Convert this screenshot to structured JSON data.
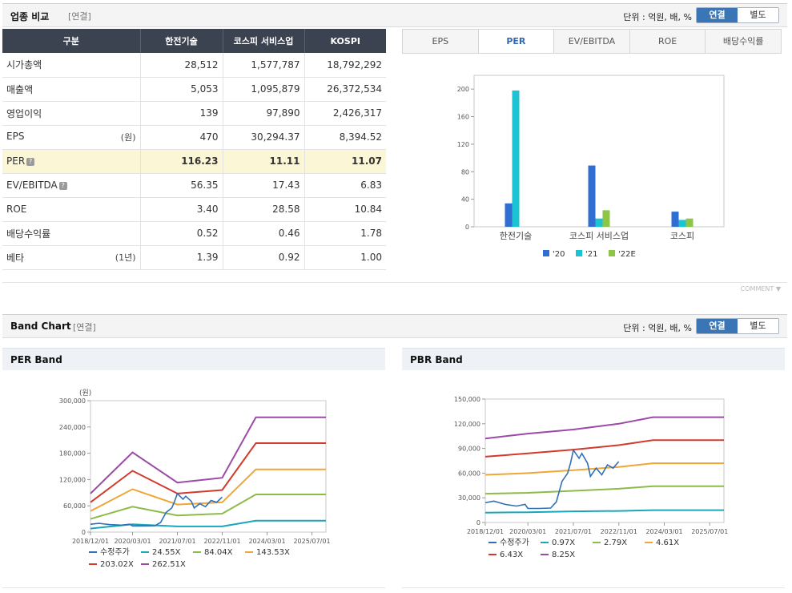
{
  "comparison": {
    "title": "업종 비교",
    "sub": "[연결]",
    "unit": "단위 : 억원, 배, %",
    "toggle": [
      "연결",
      "별도"
    ],
    "headers": [
      "구분",
      "한전기술",
      "코스피 서비스업",
      "KOSPI"
    ],
    "rows": [
      {
        "label": "시가총액",
        "unit": "",
        "q": false,
        "values": [
          "28,512",
          "1,577,787",
          "18,792,292"
        ],
        "highlight": false
      },
      {
        "label": "매출액",
        "unit": "",
        "q": false,
        "values": [
          "5,053",
          "1,095,879",
          "26,372,534"
        ],
        "highlight": false
      },
      {
        "label": "영업이익",
        "unit": "",
        "q": false,
        "values": [
          "139",
          "97,890",
          "2,426,317"
        ],
        "highlight": false
      },
      {
        "label": "EPS",
        "unit": "(원)",
        "q": false,
        "values": [
          "470",
          "30,294.37",
          "8,394.52"
        ],
        "highlight": false
      },
      {
        "label": "PER",
        "unit": "",
        "q": true,
        "values": [
          "116.23",
          "11.11",
          "11.07"
        ],
        "highlight": true
      },
      {
        "label": "EV/EBITDA",
        "unit": "",
        "q": true,
        "values": [
          "56.35",
          "17.43",
          "6.83"
        ],
        "highlight": false
      },
      {
        "label": "ROE",
        "unit": "",
        "q": false,
        "values": [
          "3.40",
          "28.58",
          "10.84"
        ],
        "highlight": false
      },
      {
        "label": "배당수익률",
        "unit": "",
        "q": false,
        "values": [
          "0.52",
          "0.46",
          "1.78"
        ],
        "highlight": false
      },
      {
        "label": "베타",
        "unit": "(1년)",
        "q": false,
        "values": [
          "1.39",
          "0.92",
          "1.00"
        ],
        "highlight": false
      }
    ],
    "tabs": [
      "EPS",
      "PER",
      "EV/EBITDA",
      "ROE",
      "배당수익률"
    ],
    "active_tab": "PER",
    "comment": "COMMENT"
  },
  "band": {
    "title": "Band Chart",
    "sub": "[연결]",
    "unit": "단위 : 억원, 배, %",
    "toggle": [
      "연결",
      "별도"
    ]
  },
  "chart_data": [
    {
      "type": "bar",
      "title": "",
      "categories": [
        "한전기술",
        "코스피 서비스업",
        "코스피"
      ],
      "series": [
        {
          "name": "'20",
          "values": [
            34,
            89,
            22
          ]
        },
        {
          "name": "'21",
          "values": [
            198,
            12,
            10
          ]
        },
        {
          "name": "'22E",
          "values": [
            0,
            24,
            12
          ]
        }
      ],
      "colors": [
        "#2f6fd1",
        "#1cc3d3",
        "#8dc547"
      ],
      "ylim": [
        0,
        220
      ],
      "yticks": [
        0,
        40,
        80,
        120,
        160,
        200
      ],
      "legend": "bottom"
    },
    {
      "type": "line",
      "title": "PER Band",
      "ylabel": "(원)",
      "ylim": [
        0,
        300000
      ],
      "yticks": [
        "0",
        "60,000",
        "120,000",
        "180,000",
        "240,000",
        "300,000"
      ],
      "xticks": [
        "2018/12/01",
        "2020/03/01",
        "2021/07/01",
        "2022/11/01",
        "2024/03/01",
        "2025/07/01"
      ],
      "x_range": [
        "2018/12/01",
        "2025/12/01"
      ],
      "series": [
        {
          "name": "수정주가",
          "color": "#2f6fb8",
          "points": [
            [
              "2018/12/01",
              18000
            ],
            [
              "2019/03/01",
              20000
            ],
            [
              "2019/07/01",
              17000
            ],
            [
              "2019/11/01",
              16000
            ],
            [
              "2020/02/01",
              18000
            ],
            [
              "2020/03/01",
              14000
            ],
            [
              "2020/07/01",
              14000
            ],
            [
              "2020/11/01",
              14500
            ],
            [
              "2021/01/01",
              22000
            ],
            [
              "2021/03/01",
              45000
            ],
            [
              "2021/05/01",
              55000
            ],
            [
              "2021/06/01",
              70000
            ],
            [
              "2021/07/01",
              88000
            ],
            [
              "2021/09/01",
              75000
            ],
            [
              "2021/10/01",
              82000
            ],
            [
              "2021/12/01",
              70000
            ],
            [
              "2022/01/01",
              55000
            ],
            [
              "2022/03/01",
              65000
            ],
            [
              "2022/05/01",
              58000
            ],
            [
              "2022/07/01",
              72000
            ],
            [
              "2022/09/01",
              68000
            ],
            [
              "2022/11/01",
              80000
            ]
          ]
        },
        {
          "name": "24.55X",
          "color": "#1aa7b8",
          "points": [
            [
              "2018/12/01",
              8000
            ],
            [
              "2020/03/01",
              18000
            ],
            [
              "2021/07/01",
              13000
            ],
            [
              "2022/11/01",
              13000
            ],
            [
              "2023/11/01",
              26000
            ],
            [
              "2025/12/01",
              26000
            ]
          ]
        },
        {
          "name": "84.04X",
          "color": "#8dbb4a",
          "points": [
            [
              "2018/12/01",
              30000
            ],
            [
              "2020/03/01",
              58000
            ],
            [
              "2021/07/01",
              38000
            ],
            [
              "2022/11/01",
              42000
            ],
            [
              "2023/11/01",
              86000
            ],
            [
              "2025/12/01",
              86000
            ]
          ]
        },
        {
          "name": "143.53X",
          "color": "#f0a637",
          "points": [
            [
              "2018/12/01",
              48000
            ],
            [
              "2020/03/01",
              98000
            ],
            [
              "2021/07/01",
              63000
            ],
            [
              "2022/11/01",
              68000
            ],
            [
              "2023/11/01",
              143000
            ],
            [
              "2025/12/01",
              143000
            ]
          ]
        },
        {
          "name": "203.02X",
          "color": "#d23a2e",
          "points": [
            [
              "2018/12/01",
              68000
            ],
            [
              "2020/03/01",
              140000
            ],
            [
              "2021/07/01",
              88000
            ],
            [
              "2022/11/01",
              96000
            ],
            [
              "2023/11/01",
              203000
            ],
            [
              "2025/12/01",
              203000
            ]
          ]
        },
        {
          "name": "262.51X",
          "color": "#9b4aa7",
          "points": [
            [
              "2018/12/01",
              88000
            ],
            [
              "2020/03/01",
              182000
            ],
            [
              "2021/07/01",
              113000
            ],
            [
              "2022/11/01",
              124000
            ],
            [
              "2023/11/01",
              262000
            ],
            [
              "2025/12/01",
              262000
            ]
          ]
        }
      ]
    },
    {
      "type": "line",
      "title": "PBR Band",
      "ylabel": "",
      "ylim": [
        0,
        150000
      ],
      "yticks": [
        "0",
        "30,000",
        "60,000",
        "90,000",
        "120,000",
        "150,000"
      ],
      "xticks": [
        "2018/12/01",
        "2020/03/01",
        "2021/07/01",
        "2022/11/01",
        "2024/03/01",
        "2025/07/01"
      ],
      "x_range": [
        "2018/12/01",
        "2025/12/01"
      ],
      "series": [
        {
          "name": "수정주가",
          "color": "#2f6fb8",
          "points": [
            [
              "2018/12/01",
              24000
            ],
            [
              "2019/03/01",
              26000
            ],
            [
              "2019/07/01",
              22000
            ],
            [
              "2019/11/01",
              20000
            ],
            [
              "2020/02/01",
              22000
            ],
            [
              "2020/03/01",
              17000
            ],
            [
              "2020/07/01",
              17000
            ],
            [
              "2020/11/01",
              17500
            ],
            [
              "2021/01/01",
              25000
            ],
            [
              "2021/03/01",
              50000
            ],
            [
              "2021/05/01",
              60000
            ],
            [
              "2021/06/01",
              72000
            ],
            [
              "2021/07/01",
              88000
            ],
            [
              "2021/09/01",
              78000
            ],
            [
              "2021/10/01",
              84000
            ],
            [
              "2021/12/01",
              72000
            ],
            [
              "2022/01/01",
              56000
            ],
            [
              "2022/03/01",
              66000
            ],
            [
              "2022/05/01",
              58000
            ],
            [
              "2022/07/01",
              70000
            ],
            [
              "2022/09/01",
              66000
            ],
            [
              "2022/11/01",
              74000
            ]
          ]
        },
        {
          "name": "0.97X",
          "color": "#1aa7b8",
          "points": [
            [
              "2018/12/01",
              12000
            ],
            [
              "2020/03/01",
              12500
            ],
            [
              "2021/07/01",
              13500
            ],
            [
              "2022/11/01",
              14000
            ],
            [
              "2023/11/01",
              15000
            ],
            [
              "2025/12/01",
              15000
            ]
          ]
        },
        {
          "name": "2.79X",
          "color": "#8dbb4a",
          "points": [
            [
              "2018/12/01",
              35000
            ],
            [
              "2020/03/01",
              36000
            ],
            [
              "2021/07/01",
              38500
            ],
            [
              "2022/11/01",
              41000
            ],
            [
              "2023/11/01",
              44000
            ],
            [
              "2025/12/01",
              44000
            ]
          ]
        },
        {
          "name": "4.61X",
          "color": "#f0a637",
          "points": [
            [
              "2018/12/01",
              58000
            ],
            [
              "2020/03/01",
              60000
            ],
            [
              "2021/07/01",
              63500
            ],
            [
              "2022/11/01",
              67500
            ],
            [
              "2023/11/01",
              72000
            ],
            [
              "2025/12/01",
              72000
            ]
          ]
        },
        {
          "name": "6.43X",
          "color": "#d23a2e",
          "points": [
            [
              "2018/12/01",
              80000
            ],
            [
              "2020/03/01",
              84000
            ],
            [
              "2021/07/01",
              88500
            ],
            [
              "2022/11/01",
              94000
            ],
            [
              "2023/11/01",
              100000
            ],
            [
              "2025/12/01",
              100000
            ]
          ]
        },
        {
          "name": "8.25X",
          "color": "#9b4aa7",
          "points": [
            [
              "2018/12/01",
              102000
            ],
            [
              "2020/03/01",
              108000
            ],
            [
              "2021/07/01",
              113000
            ],
            [
              "2022/11/01",
              120000
            ],
            [
              "2023/11/01",
              128000
            ],
            [
              "2025/12/01",
              128000
            ]
          ]
        }
      ]
    }
  ]
}
